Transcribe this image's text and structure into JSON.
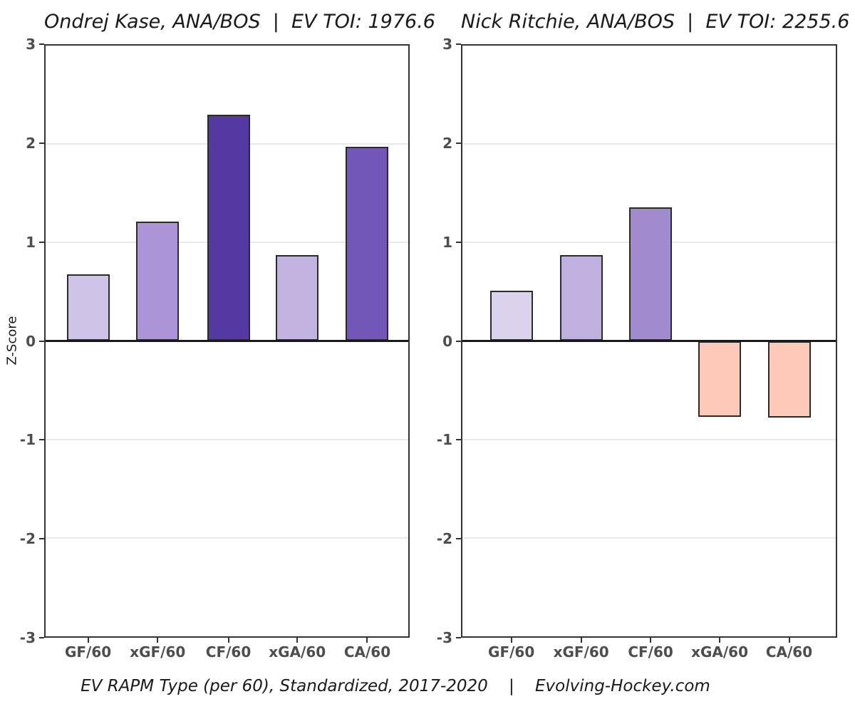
{
  "figure": {
    "caption": "EV RAPM Type (per 60), Standardized, 2017-2020    |    Evolving-Hockey.com"
  },
  "colors": {
    "background": "#ffffff",
    "axis_border": "#333333",
    "tick_mark": "#333333",
    "tick_label": "#4d4d4d",
    "gridline": "#e9e9e9",
    "zero_line": "#1a1a1a",
    "bar_border": "#2b2b2b"
  },
  "chart_data": [
    {
      "type": "bar",
      "title": "Ondrej Kase, ANA/BOS  |  EV TOI: 1976.6",
      "ylabel": "Z-Score",
      "xlabel": "",
      "ylim": [
        -3,
        3
      ],
      "yticks": [
        3,
        2,
        1,
        0,
        -1,
        -2,
        -3
      ],
      "grid": "horizontal-light",
      "legend": "none",
      "categories": [
        "GF/60",
        "xGF/60",
        "CF/60",
        "xGA/60",
        "CA/60"
      ],
      "values": [
        0.68,
        1.21,
        2.3,
        0.87,
        1.97
      ],
      "bar_colors": [
        "#cfc4e7",
        "#ab94d8",
        "#5539a3",
        "#c2b3e0",
        "#7257b8"
      ]
    },
    {
      "type": "bar",
      "title": "Nick Ritchie, ANA/BOS  |  EV TOI: 2255.6",
      "ylabel": "",
      "xlabel": "",
      "ylim": [
        -3,
        3
      ],
      "yticks": [
        3,
        2,
        1,
        0,
        -1,
        -2,
        -3
      ],
      "grid": "horizontal-light",
      "legend": "none",
      "categories": [
        "GF/60",
        "xGF/60",
        "CF/60",
        "xGA/60",
        "CA/60"
      ],
      "values": [
        0.51,
        0.87,
        1.36,
        -0.77,
        -0.78
      ],
      "bar_colors": [
        "#dbd2ec",
        "#bfb0e0",
        "#9f8bce",
        "#fdc9b8",
        "#fdc9b8"
      ]
    }
  ]
}
